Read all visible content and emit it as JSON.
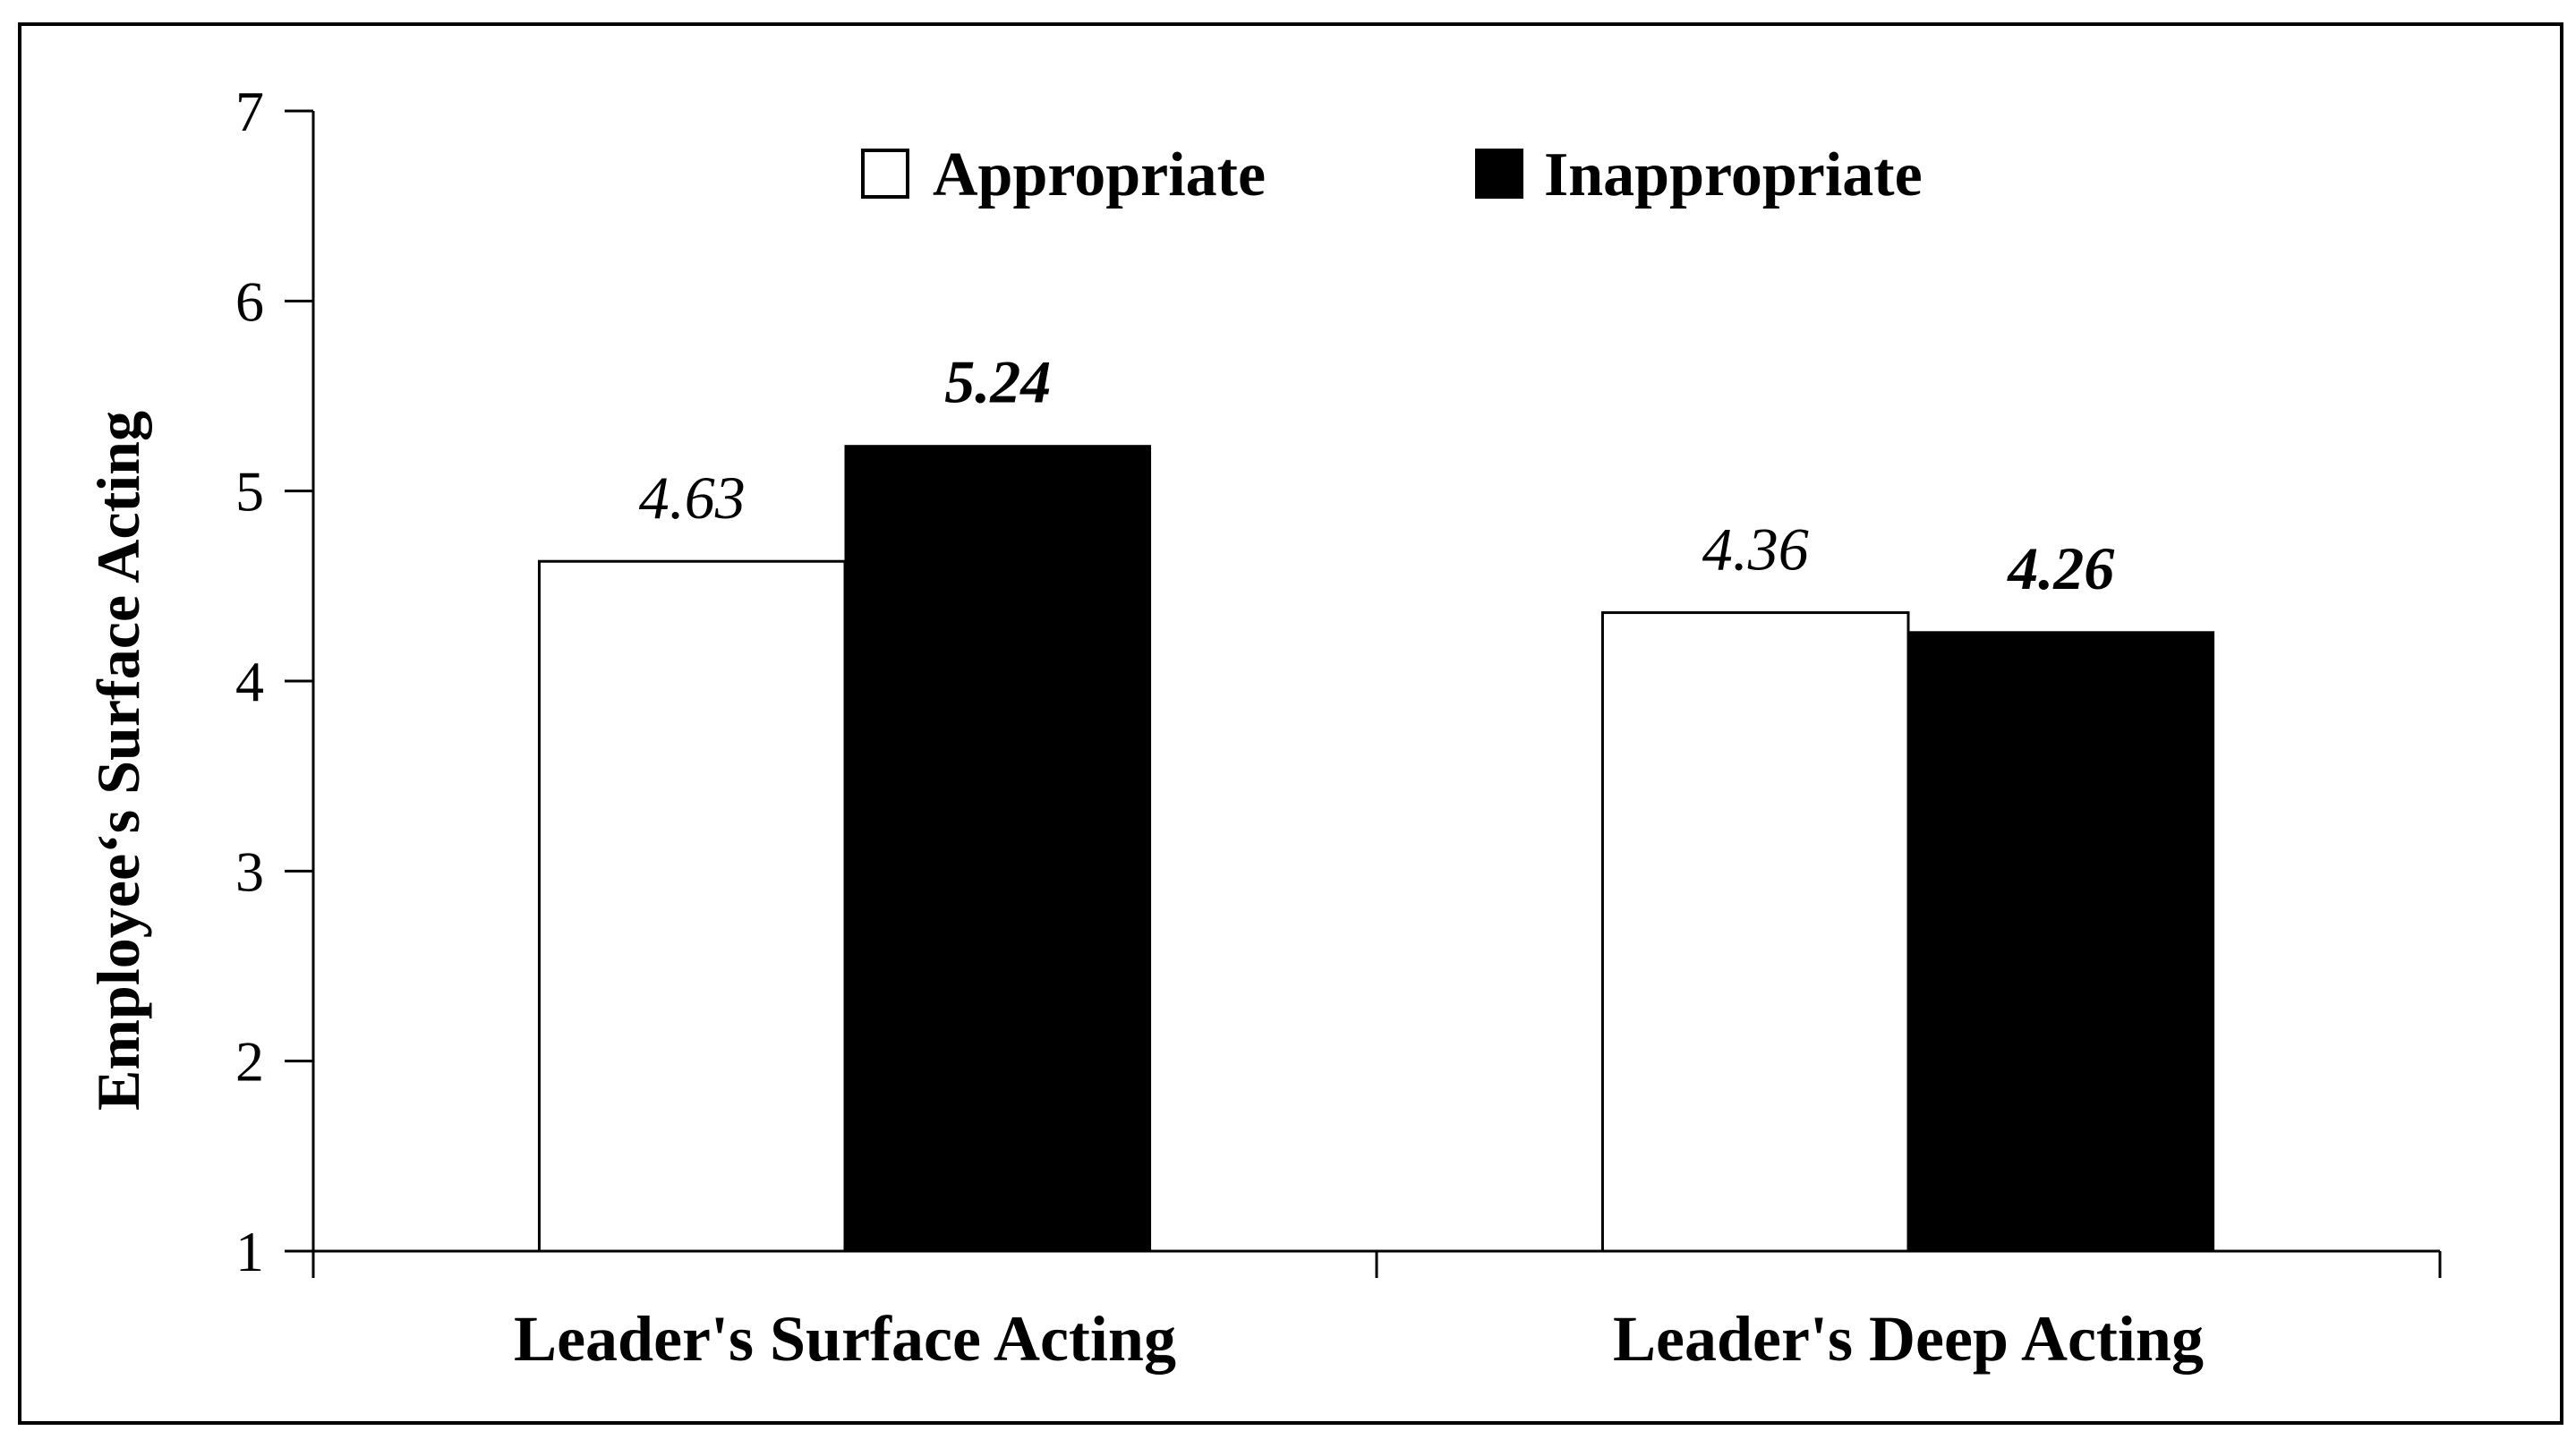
{
  "chart_data": {
    "type": "bar",
    "title": "",
    "xlabel": "",
    "ylabel": "Employee‘s Surface Acting",
    "ylim": [
      1,
      7
    ],
    "yticks": [
      1,
      2,
      3,
      4,
      5,
      6,
      7
    ],
    "grid": false,
    "legend_position": "top",
    "categories": [
      "Leader's Surface Acting",
      "Leader's Deep Acting"
    ],
    "series": [
      {
        "name": "Appropriate",
        "values": [
          4.63,
          4.36
        ],
        "labels": [
          "4.63",
          "4.36"
        ],
        "color": "#ffffff",
        "label_style": "italic"
      },
      {
        "name": "Inappropriate",
        "values": [
          5.24,
          4.26
        ],
        "labels": [
          "5.24",
          "4.26"
        ],
        "color": "#000000",
        "label_style": "bold-italic"
      }
    ]
  }
}
